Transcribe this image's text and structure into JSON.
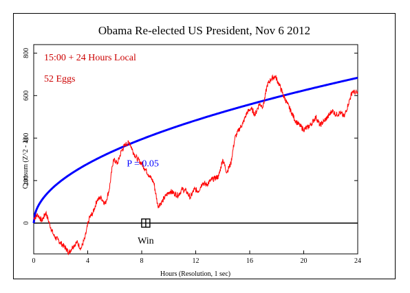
{
  "chart_data": {
    "type": "line",
    "title": "Obama Re-elected US President, Nov 6 2012",
    "xlabel": "Hours (Resolution, 1 sec)",
    "ylabel": "Cumsum (Z^2 - 1)",
    "xlim": [
      0,
      24
    ],
    "ylim": [
      -145,
      840
    ],
    "x_ticks": [
      0,
      4,
      8,
      12,
      16,
      20,
      24
    ],
    "y_ticks": [
      0,
      200,
      400,
      600,
      800
    ],
    "annotations": {
      "time_label": "15:00 + 24 Hours Local",
      "eggs_label": "52 Eggs",
      "p_label": "P = 0.05",
      "win_label": "Win"
    },
    "win_marker": {
      "x": 8.3,
      "y": 0
    },
    "colors": {
      "cumsum": "#ff0000",
      "envelope": "#0000ff",
      "axis": "#000000",
      "annotation": "#cc0000"
    },
    "series": [
      {
        "role": "cumulative deviation",
        "x": [
          0,
          0.3,
          0.6,
          0.9,
          1.2,
          1.5,
          1.8,
          2.1,
          2.4,
          2.6,
          2.9,
          3.2,
          3.5,
          3.8,
          4.1,
          4.4,
          4.7,
          5.0,
          5.3,
          5.6,
          5.9,
          6.2,
          6.5,
          6.8,
          7.1,
          7.4,
          7.7,
          8.0,
          8.3,
          8.6,
          8.9,
          9.2,
          9.5,
          9.8,
          10.1,
          10.4,
          10.7,
          11.0,
          11.3,
          11.6,
          11.9,
          12.2,
          12.5,
          12.8,
          13.1,
          13.4,
          13.7,
          14.0,
          14.3,
          14.6,
          14.9,
          15.2,
          15.5,
          15.8,
          16.1,
          16.4,
          16.7,
          17.0,
          17.3,
          17.6,
          17.9,
          18.2,
          18.5,
          18.8,
          19.1,
          19.4,
          19.7,
          20.0,
          20.3,
          20.6,
          20.9,
          21.2,
          21.5,
          21.8,
          22.1,
          22.4,
          22.7,
          23.0,
          23.3,
          23.6,
          24.0
        ],
        "y": [
          20,
          40,
          10,
          50,
          -10,
          -60,
          -80,
          -100,
          -120,
          -140,
          -110,
          -90,
          -120,
          -70,
          20,
          50,
          110,
          120,
          90,
          160,
          300,
          280,
          340,
          370,
          380,
          330,
          300,
          280,
          250,
          220,
          190,
          80,
          100,
          130,
          150,
          140,
          130,
          160,
          150,
          120,
          160,
          150,
          190,
          180,
          200,
          210,
          220,
          300,
          240,
          280,
          400,
          440,
          470,
          520,
          540,
          510,
          560,
          550,
          650,
          680,
          690,
          650,
          600,
          560,
          520,
          480,
          460,
          440,
          450,
          470,
          500,
          460,
          480,
          500,
          530,
          510,
          520,
          500,
          560,
          620,
          610
        ]
      }
    ]
  }
}
